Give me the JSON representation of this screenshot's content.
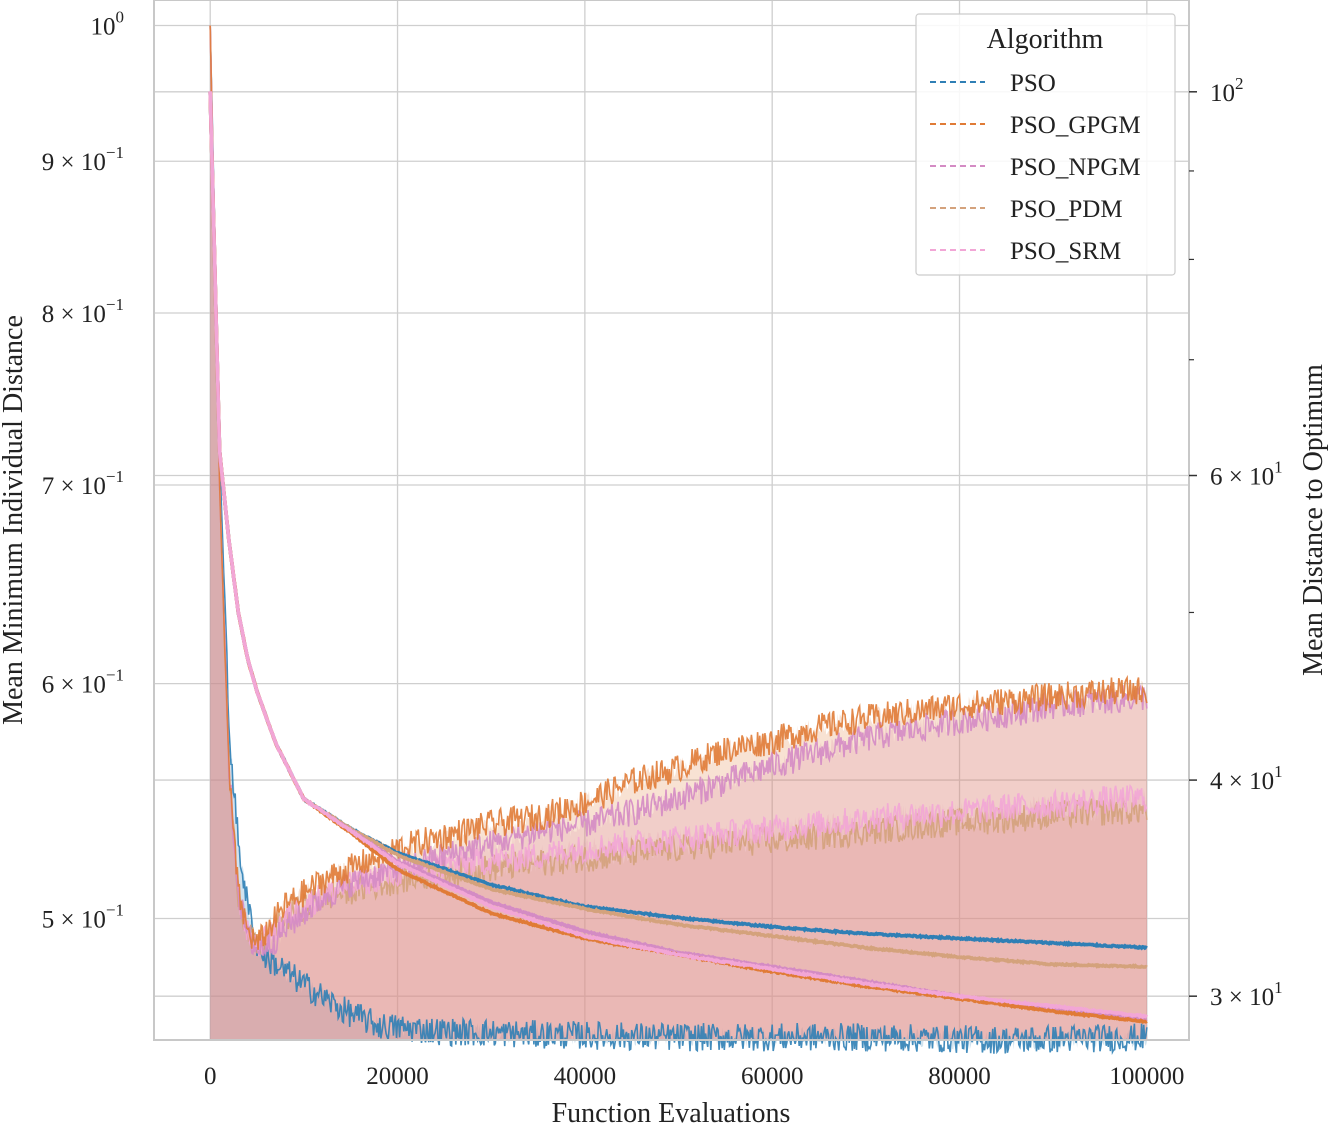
{
  "chart_data": {
    "type": "line",
    "xlabel": "Function Evaluations",
    "ylabel_left": "Mean Minimum Individual Distance",
    "ylabel_right": "Mean Distance to Optimum",
    "xlim": [
      -6000,
      104500
    ],
    "ylim_left": [
      0.455,
      1.02
    ],
    "ylim_right": [
      28.3,
      113
    ],
    "left_scale": "log",
    "right_scale": "log",
    "grid": true,
    "x_ticks": [
      {
        "value": 0,
        "label": "0"
      },
      {
        "value": 20000,
        "label": "20000"
      },
      {
        "value": 40000,
        "label": "40000"
      },
      {
        "value": 60000,
        "label": "60000"
      },
      {
        "value": 80000,
        "label": "80000"
      },
      {
        "value": 100000,
        "label": "100000"
      }
    ],
    "left_ticks": [
      {
        "value": 1.0,
        "base": "10",
        "exp": "0"
      },
      {
        "value": 0.9,
        "base": "9 × 10",
        "exp": "−1"
      },
      {
        "value": 0.8,
        "base": "8 × 10",
        "exp": "−1"
      },
      {
        "value": 0.7,
        "base": "7 × 10",
        "exp": "−1"
      },
      {
        "value": 0.6,
        "base": "6 × 10",
        "exp": "−1"
      },
      {
        "value": 0.5,
        "base": "5 × 10",
        "exp": "−1"
      }
    ],
    "right_ticks": [
      {
        "value": 100,
        "base": "10",
        "exp": "2"
      },
      {
        "value": 60,
        "base": "6 × 10",
        "exp": "1"
      },
      {
        "value": 40,
        "base": "4 × 10",
        "exp": "1"
      },
      {
        "value": 30,
        "base": "3 × 10",
        "exp": "1"
      }
    ],
    "right_minor_ticks": [
      90,
      80,
      70,
      50
    ],
    "legend": {
      "title": "Algorithm",
      "position": "top-right"
    },
    "series": [
      {
        "name": "PSO",
        "color": "#2f7fb5",
        "diversity_left": {
          "x": [
            0,
            1000,
            2000,
            3000,
            4000,
            5000,
            6000,
            8000,
            10000,
            14000,
            18000,
            25000,
            35000,
            50000,
            70000,
            85000,
            100000
          ],
          "y": [
            1.0,
            0.72,
            0.58,
            0.53,
            0.505,
            0.49,
            0.485,
            0.48,
            0.475,
            0.466,
            0.46,
            0.458,
            0.457,
            0.456,
            0.456,
            0.455,
            0.456
          ]
        },
        "distance_right": {
          "x": [
            0,
            1000,
            2000,
            3000,
            4000,
            5000,
            7000,
            10000,
            15000,
            20000,
            30000,
            40000,
            50000,
            60000,
            70000,
            80000,
            90000,
            100000
          ],
          "y": [
            100,
            62,
            55,
            50,
            47,
            45,
            42,
            39,
            37.5,
            36.3,
            34.8,
            33.8,
            33.3,
            32.9,
            32.6,
            32.4,
            32.2,
            32.0
          ]
        }
      },
      {
        "name": "PSO_GPGM",
        "color": "#e07b36",
        "diversity_left": {
          "x": [
            0,
            1000,
            2000,
            3000,
            4000,
            5000,
            6000,
            7000,
            8000,
            10000,
            12000,
            15000,
            20000,
            25000,
            30000,
            35000,
            40000,
            45000,
            50000,
            55000,
            60000,
            65000,
            70000,
            75000,
            80000,
            85000,
            90000,
            95000,
            100000
          ],
          "y": [
            1.0,
            0.7,
            0.56,
            0.51,
            0.495,
            0.49,
            0.495,
            0.5,
            0.505,
            0.51,
            0.515,
            0.52,
            0.528,
            0.533,
            0.538,
            0.541,
            0.547,
            0.556,
            0.562,
            0.57,
            0.574,
            0.58,
            0.584,
            0.587,
            0.59,
            0.592,
            0.594,
            0.596,
            0.597
          ]
        },
        "distance_right": {
          "x": [
            0,
            1000,
            2000,
            3000,
            4000,
            5000,
            7000,
            10000,
            15000,
            20000,
            30000,
            40000,
            50000,
            60000,
            70000,
            80000,
            90000,
            100000
          ],
          "y": [
            100,
            62,
            55,
            50,
            47,
            45,
            42,
            39,
            37.3,
            35.5,
            33.5,
            32.4,
            31.7,
            31.0,
            30.4,
            29.9,
            29.4,
            29.0
          ]
        }
      },
      {
        "name": "PSO_NPGM",
        "color": "#d48bc4",
        "diversity_left": {
          "x": [
            0,
            1000,
            2000,
            3000,
            4000,
            5000,
            6000,
            7000,
            8000,
            10000,
            12000,
            15000,
            20000,
            25000,
            30000,
            35000,
            40000,
            45000,
            50000,
            55000,
            60000,
            65000,
            70000,
            75000,
            80000,
            85000,
            90000,
            95000,
            100000
          ],
          "y": [
            1.0,
            0.7,
            0.56,
            0.51,
            0.493,
            0.488,
            0.49,
            0.492,
            0.496,
            0.502,
            0.508,
            0.514,
            0.52,
            0.525,
            0.53,
            0.535,
            0.538,
            0.543,
            0.549,
            0.556,
            0.563,
            0.569,
            0.575,
            0.579,
            0.583,
            0.586,
            0.59,
            0.592,
            0.594
          ]
        },
        "distance_right": {
          "x": [
            0,
            1000,
            2000,
            3000,
            4000,
            5000,
            7000,
            10000,
            15000,
            20000,
            30000,
            40000,
            50000,
            60000,
            70000,
            80000,
            90000,
            100000
          ],
          "y": [
            100,
            62,
            55,
            50,
            47,
            45,
            42,
            39,
            37.4,
            35.9,
            34.0,
            32.7,
            31.8,
            31.2,
            30.6,
            30.0,
            29.5,
            29.1
          ]
        }
      },
      {
        "name": "PSO_PDM",
        "color": "#d4a27c",
        "diversity_left": {
          "x": [
            0,
            1000,
            2000,
            3000,
            4000,
            5000,
            6000,
            7000,
            8000,
            10000,
            12000,
            15000,
            20000,
            25000,
            30000,
            35000,
            40000,
            45000,
            50000,
            55000,
            60000,
            65000,
            70000,
            75000,
            80000,
            85000,
            90000,
            95000,
            100000
          ],
          "y": [
            1.0,
            0.7,
            0.56,
            0.51,
            0.494,
            0.489,
            0.492,
            0.496,
            0.5,
            0.505,
            0.508,
            0.511,
            0.515,
            0.518,
            0.52,
            0.522,
            0.524,
            0.526,
            0.528,
            0.53,
            0.531,
            0.533,
            0.535,
            0.537,
            0.539,
            0.54,
            0.542,
            0.543,
            0.544
          ]
        },
        "distance_right": {
          "x": [
            0,
            1000,
            2000,
            3000,
            4000,
            5000,
            7000,
            10000,
            15000,
            20000,
            30000,
            40000,
            50000,
            60000,
            70000,
            80000,
            90000,
            100000
          ],
          "y": [
            100,
            62,
            55,
            50,
            47,
            45,
            42,
            39,
            37.5,
            36.2,
            34.6,
            33.7,
            33.0,
            32.5,
            32.0,
            31.6,
            31.3,
            31.2
          ]
        }
      },
      {
        "name": "PSO_SRM",
        "color": "#f2a6d6",
        "diversity_left": {
          "x": [
            0,
            1000,
            2000,
            3000,
            4000,
            5000,
            6000,
            7000,
            8000,
            10000,
            12000,
            15000,
            20000,
            25000,
            30000,
            35000,
            40000,
            45000,
            50000,
            55000,
            60000,
            65000,
            70000,
            75000,
            80000,
            85000,
            90000,
            95000,
            100000
          ],
          "y": [
            1.0,
            0.7,
            0.56,
            0.51,
            0.494,
            0.49,
            0.492,
            0.496,
            0.5,
            0.505,
            0.509,
            0.513,
            0.518,
            0.521,
            0.523,
            0.525,
            0.528,
            0.53,
            0.532,
            0.534,
            0.536,
            0.538,
            0.54,
            0.542,
            0.543,
            0.545,
            0.546,
            0.548,
            0.549
          ]
        },
        "distance_right": {
          "x": [
            0,
            1000,
            2000,
            3000,
            4000,
            5000,
            7000,
            10000,
            15000,
            20000,
            30000,
            40000,
            50000,
            60000,
            70000,
            80000,
            90000,
            100000
          ],
          "y": [
            100,
            62,
            55,
            50,
            47,
            45,
            42,
            39,
            37.4,
            35.8,
            33.8,
            32.5,
            31.7,
            31.1,
            30.5,
            30.0,
            29.6,
            29.2
          ]
        }
      }
    ]
  }
}
